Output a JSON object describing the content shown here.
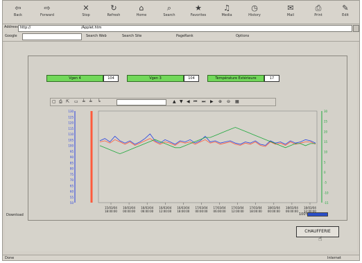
{
  "toolbar": {
    "buttons": [
      {
        "label": "Back",
        "icon": "back-arrow-icon"
      },
      {
        "label": "Forward",
        "icon": "forward-arrow-icon"
      },
      {
        "label": "Stop",
        "icon": "stop-icon"
      },
      {
        "label": "Refresh",
        "icon": "refresh-icon"
      },
      {
        "label": "Home",
        "icon": "home-icon"
      },
      {
        "label": "Search",
        "icon": "search-icon"
      },
      {
        "label": "Favorites",
        "icon": "favorites-icon"
      },
      {
        "label": "Media",
        "icon": "media-icon"
      },
      {
        "label": "History",
        "icon": "history-icon"
      },
      {
        "label": "Mail",
        "icon": "mail-icon"
      },
      {
        "label": "Print",
        "icon": "print-icon"
      },
      {
        "label": "Edit",
        "icon": "edit-icon"
      }
    ]
  },
  "address": {
    "label": "Address",
    "prefix": "http://",
    "value": "/Applet.htm"
  },
  "linksbar": {
    "google": "Google",
    "search_web": "Search Web",
    "search_site": "Search Site",
    "pagerank": "PageRank",
    "options": "Options"
  },
  "readouts": [
    {
      "label": "Vgen 4",
      "value": "104"
    },
    {
      "label": "Vgen 3",
      "value": "104"
    },
    {
      "label": "Température Extérieure",
      "value": "17"
    }
  ],
  "chart_data": {
    "type": "line",
    "x_ticks": [
      "15/03/04\n18:00:00",
      "16/03/04\n00:00:00",
      "16/03/04\n06:00:00",
      "16/03/04\n12:00:00",
      "16/03/04\n18:00:00",
      "17/03/04\n00:00:00",
      "17/03/04\n06:00:00",
      "17/03/04\n12:00:00",
      "17/03/04\n18:00:00",
      "18/03/04\n00:00:00",
      "18/03/04\n06:00:00",
      "18/03/04\n12:00:00"
    ],
    "left_axis_ticks": [
      130,
      125,
      120,
      115,
      110,
      105,
      100,
      95,
      90,
      85,
      80,
      75,
      70,
      65,
      60,
      55,
      50
    ],
    "right_axis_ticks": [
      30,
      25,
      20,
      15,
      10,
      5,
      0,
      -5,
      -10,
      -15
    ],
    "left_ylim": [
      50,
      130
    ],
    "right_ylim": [
      -15,
      30
    ],
    "series": [
      {
        "color": "#2840e0",
        "axis": "left",
        "values": [
          104,
          106,
          103,
          108,
          104,
          102,
          104,
          101,
          103,
          106,
          110,
          104,
          102,
          105,
          103,
          101,
          104,
          103,
          105,
          102,
          104,
          108,
          103,
          104,
          102,
          103,
          104,
          102,
          101,
          103,
          102,
          104,
          101,
          100,
          104,
          102,
          103,
          101,
          104,
          102,
          103,
          105,
          104,
          102
        ]
      },
      {
        "color": "#ff5a3c",
        "axis": "left",
        "values": [
          103,
          104,
          102,
          105,
          103,
          101,
          103,
          100,
          102,
          104,
          106,
          103,
          101,
          103,
          102,
          100,
          103,
          102,
          103,
          101,
          103,
          105,
          102,
          103,
          101,
          102,
          103,
          101,
          100,
          102,
          101,
          103,
          100,
          99,
          103,
          101,
          102,
          100,
          103,
          101,
          102,
          103,
          103,
          101
        ]
      },
      {
        "color": "#1ea83c",
        "axis": "right",
        "values": [
          13,
          12,
          11,
          10,
          9,
          10,
          11,
          12,
          13,
          14,
          15,
          16,
          15,
          14,
          13,
          12,
          12,
          13,
          14,
          15,
          16,
          17,
          17,
          18,
          19,
          20,
          21,
          22,
          21,
          20,
          19,
          18,
          17,
          16,
          15,
          14,
          13,
          12,
          13,
          14,
          14,
          13,
          14,
          14
        ]
      }
    ]
  },
  "status": {
    "left": "Done",
    "zone": "Internet",
    "percent": "100%",
    "progress": 1.0
  },
  "chart_status": "Download",
  "action_button": "CHAUFFERIE"
}
